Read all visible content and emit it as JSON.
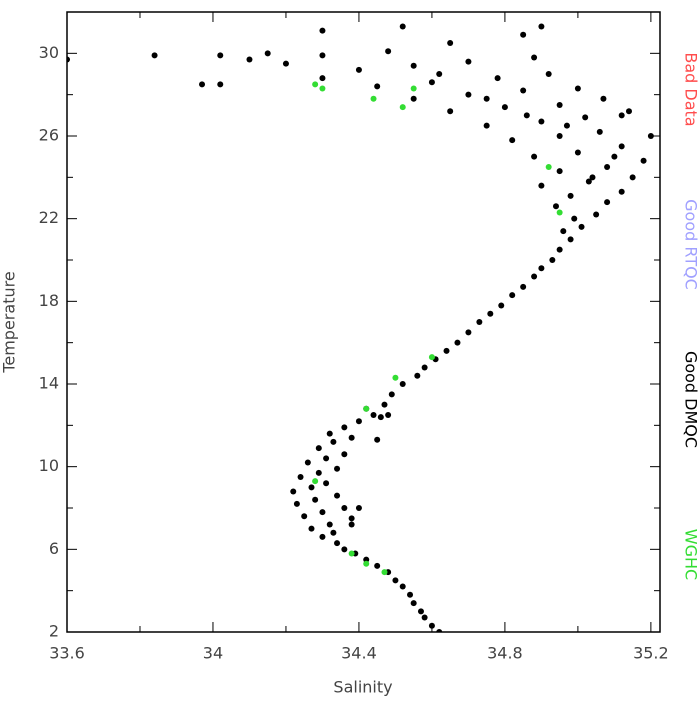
{
  "chart_data": {
    "type": "scatter",
    "xlabel": "Salinity",
    "ylabel": "Temperature",
    "xlim": [
      33.6,
      35.225
    ],
    "ylim": [
      2,
      32
    ],
    "xticks": [
      33.6,
      34.0,
      34.4,
      34.8,
      35.2
    ],
    "xticks_minor": [
      33.8,
      34.2,
      34.6,
      35.0
    ],
    "yticks": [
      2,
      6,
      10,
      14,
      18,
      22,
      26,
      30
    ],
    "yticks_minor": [
      4,
      8,
      12,
      16,
      20,
      24,
      28
    ],
    "legend_position": "right",
    "series": [
      {
        "name": "Bad Data",
        "color": "#ff4d4d",
        "x": [],
        "y": []
      },
      {
        "name": "Good RTQC",
        "color": "#a0a0ff",
        "x": [],
        "y": []
      },
      {
        "name": "Good DMQC",
        "color": "#000000",
        "x": [
          34.62,
          34.6,
          34.58,
          34.57,
          34.55,
          34.54,
          34.52,
          34.5,
          34.48,
          34.45,
          34.42,
          34.39,
          34.36,
          34.34,
          34.3,
          34.33,
          34.27,
          34.32,
          34.38,
          34.25,
          34.3,
          34.36,
          34.23,
          34.28,
          34.34,
          34.22,
          34.27,
          34.31,
          34.24,
          34.29,
          34.34,
          34.26,
          34.31,
          34.36,
          34.29,
          34.33,
          34.38,
          34.32,
          34.36,
          34.4,
          34.44,
          34.42,
          34.47,
          34.46,
          34.49,
          34.52,
          34.56,
          34.58,
          34.61,
          34.64,
          34.67,
          34.7,
          34.73,
          34.76,
          34.79,
          34.82,
          34.85,
          34.88,
          34.9,
          34.93,
          34.95,
          34.98,
          34.96,
          35.01,
          34.99,
          35.05,
          34.94,
          35.08,
          34.98,
          35.12,
          34.9,
          35.03,
          35.15,
          34.95,
          35.08,
          35.18,
          34.88,
          35.0,
          35.12,
          34.82,
          34.95,
          35.06,
          35.2,
          34.75,
          34.9,
          35.02,
          35.12,
          34.65,
          34.8,
          34.95,
          35.07,
          34.55,
          34.7,
          34.85,
          35.0,
          34.45,
          34.6,
          34.78,
          34.92,
          34.3,
          34.4,
          34.55,
          34.7,
          34.88,
          34.2,
          34.1,
          34.02,
          34.15,
          34.3,
          34.48,
          34.65,
          34.85,
          34.9,
          34.52,
          34.3,
          33.84,
          33.6,
          33.97,
          34.02,
          34.45,
          34.48,
          34.4,
          34.38,
          35.1,
          35.04,
          34.97,
          35.14,
          34.86,
          34.62,
          34.75
        ],
        "y": [
          2.0,
          2.3,
          2.7,
          3.0,
          3.4,
          3.8,
          4.2,
          4.5,
          4.9,
          5.2,
          5.5,
          5.8,
          6.0,
          6.3,
          6.6,
          6.8,
          7.0,
          7.2,
          7.5,
          7.6,
          7.8,
          8.0,
          8.2,
          8.4,
          8.6,
          8.8,
          9.0,
          9.2,
          9.5,
          9.7,
          9.9,
          10.2,
          10.4,
          10.6,
          10.9,
          11.2,
          11.4,
          11.6,
          11.9,
          12.2,
          12.5,
          12.8,
          13.0,
          12.4,
          13.5,
          14.0,
          14.4,
          14.8,
          15.2,
          15.6,
          16.0,
          16.5,
          17.0,
          17.4,
          17.8,
          18.3,
          18.7,
          19.2,
          19.6,
          20.0,
          20.5,
          21.0,
          21.4,
          21.6,
          22.0,
          22.2,
          22.6,
          22.8,
          23.1,
          23.3,
          23.6,
          23.8,
          24.0,
          24.3,
          24.5,
          24.8,
          25.0,
          25.2,
          25.5,
          25.8,
          26.0,
          26.2,
          26.0,
          26.5,
          26.7,
          26.9,
          27.0,
          27.2,
          27.4,
          27.5,
          27.8,
          27.8,
          28.0,
          28.2,
          28.3,
          28.4,
          28.6,
          28.8,
          29.0,
          28.8,
          29.2,
          29.4,
          29.6,
          29.8,
          29.5,
          29.7,
          29.9,
          30.0,
          29.9,
          30.1,
          30.5,
          30.9,
          31.3,
          31.3,
          31.1,
          29.9,
          29.7,
          28.5,
          28.5,
          11.3,
          12.5,
          8.0,
          7.2,
          25.0,
          24.0,
          26.5,
          27.2,
          27.0,
          29.0,
          27.8
        ]
      },
      {
        "name": "WGHC",
        "color": "#33dd33",
        "x": [
          34.28,
          34.3,
          34.44,
          34.52,
          34.55,
          34.95,
          34.92,
          34.28,
          34.42,
          34.5,
          34.6,
          34.38,
          34.47,
          34.42
        ],
        "y": [
          28.5,
          28.3,
          27.8,
          27.4,
          28.3,
          22.3,
          24.5,
          9.3,
          12.8,
          14.3,
          15.3,
          5.8,
          4.9,
          5.3
        ]
      }
    ]
  }
}
